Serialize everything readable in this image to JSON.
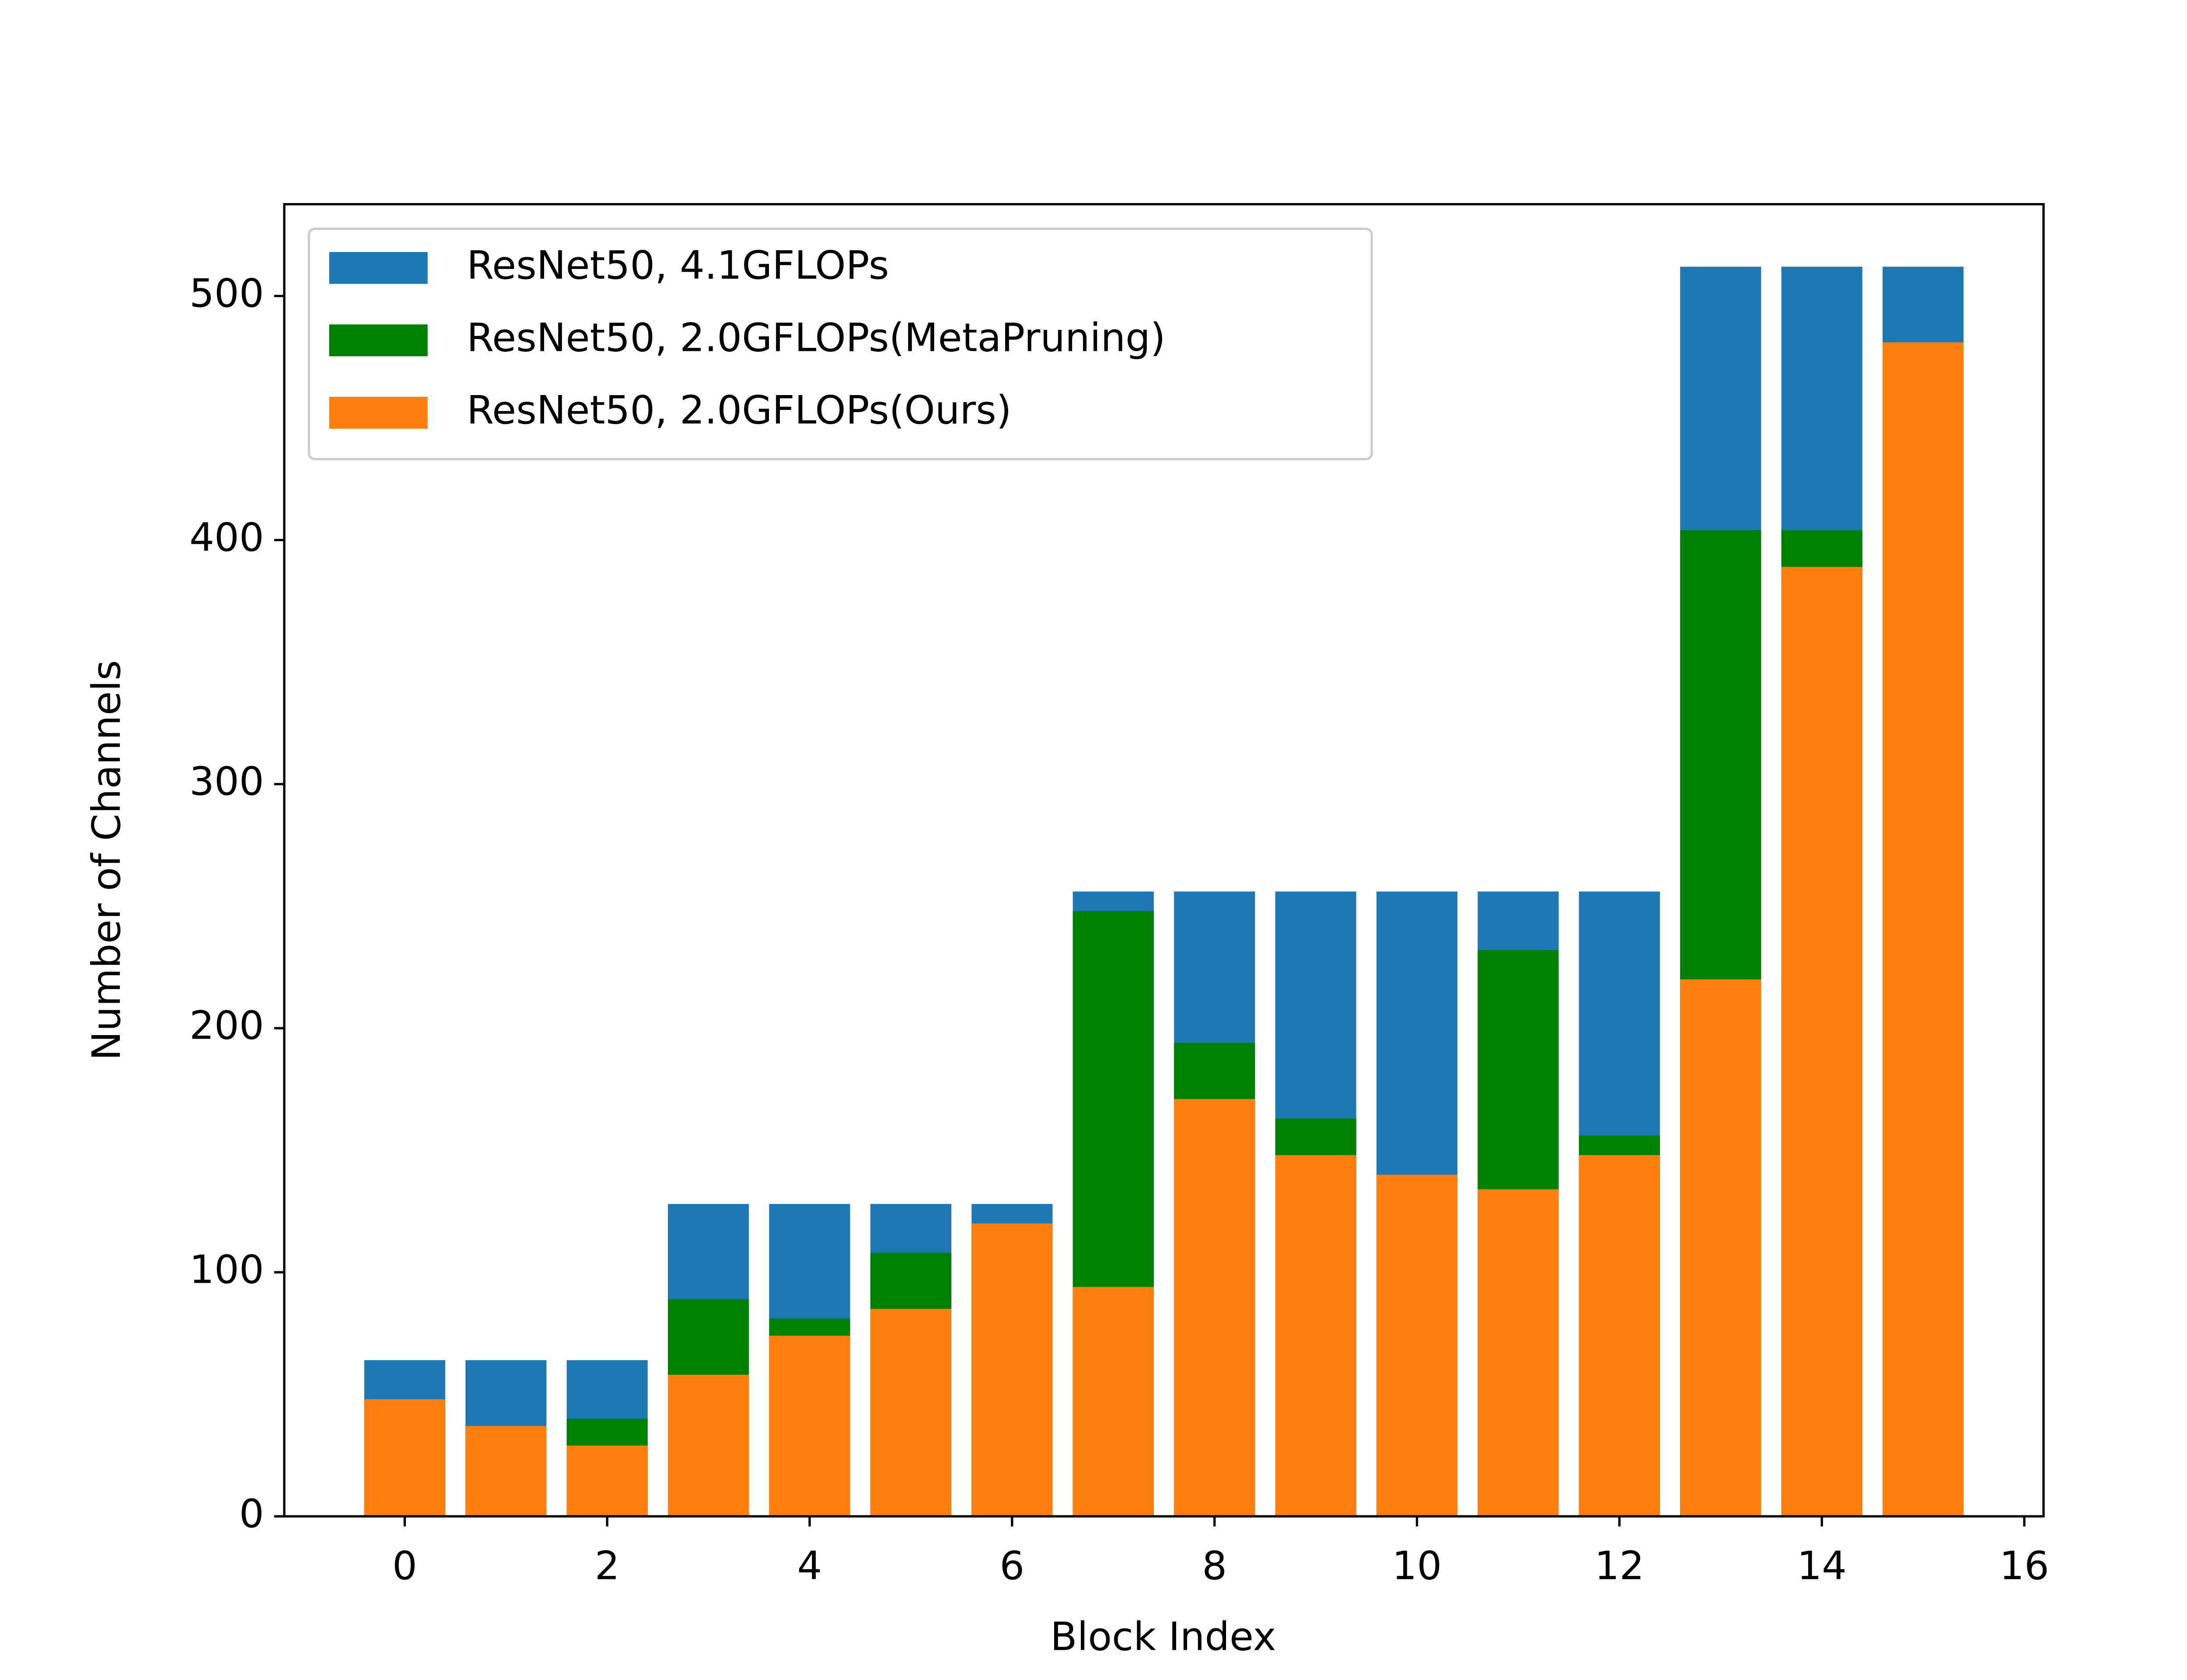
{
  "chart_data": {
    "type": "bar",
    "overlap": true,
    "x_label": "Block Index",
    "y_label": "Number of Channels",
    "x": [
      0,
      1,
      2,
      3,
      4,
      5,
      6,
      7,
      8,
      9,
      10,
      11,
      12,
      13,
      14,
      15
    ],
    "series": [
      {
        "name": "ResNet50, 4.1GFLOPs",
        "color": "#1f77b4",
        "values": [
          64,
          64,
          64,
          128,
          128,
          128,
          128,
          256,
          256,
          256,
          256,
          256,
          256,
          512,
          512,
          512
        ]
      },
      {
        "name": "ResNet50, 2.0GFLOPs(MetaPruning)",
        "color": "#008000",
        "values": [
          48,
          37,
          40,
          89,
          81,
          108,
          120,
          248,
          194,
          163,
          140,
          232,
          156,
          404,
          404,
          481
        ]
      },
      {
        "name": "ResNet50, 2.0GFLOPs(Ours)",
        "color": "#ff7f0e",
        "values": [
          48,
          37,
          29,
          58,
          74,
          85,
          120,
          94,
          171,
          148,
          140,
          134,
          148,
          220,
          389,
          481
        ]
      }
    ],
    "xlim": [
      -1.19,
      16.19
    ],
    "xticks": [
      0,
      2,
      4,
      6,
      8,
      10,
      12,
      14,
      16
    ],
    "ylim": [
      0,
      537.6
    ],
    "yticks": [
      0,
      100,
      200,
      300,
      400,
      500
    ],
    "legend": "upper left"
  }
}
